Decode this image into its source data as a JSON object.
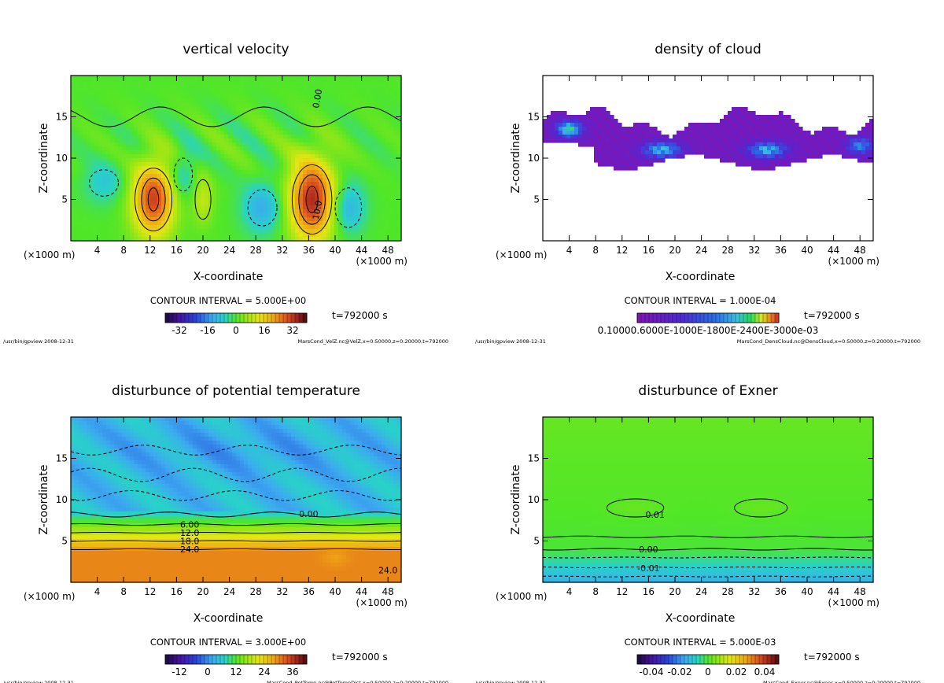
{
  "chart_data": [
    {
      "type": "heatmap",
      "id": "w",
      "title": "vertical velocity",
      "xlabel": "X-coordinate",
      "ylabel": "Z-coordinate",
      "x_unit_left": "(×1000 m)",
      "x_unit_right": "(×1000 m)",
      "xlim": [
        0,
        50
      ],
      "ylim": [
        0,
        20
      ],
      "xticks": [
        4,
        8,
        12,
        16,
        20,
        24,
        28,
        32,
        36,
        40,
        44,
        48
      ],
      "yticks": [
        5,
        10,
        15
      ],
      "contour_interval": "CONTOUR INTERVAL = 5.000E+00",
      "time_label": "t=792000 s",
      "colorbar_ticks": [
        "-32",
        "-16",
        "0",
        "16",
        "32"
      ],
      "colorbar_range": [
        -40,
        40
      ],
      "contour_labels": [
        "10.0",
        "0.00"
      ],
      "footer_left": "/usr/bin/gpview  2008-12-31",
      "footer_right": "MarsCond_VelZ.nc@VelZ,x=0:50000,z=0:20000,t=792000"
    },
    {
      "type": "heatmap",
      "id": "cloud",
      "title": "density of cloud",
      "xlabel": "X-coordinate",
      "ylabel": "Z-coordinate",
      "x_unit_left": "(×1000 m)",
      "x_unit_right": "(×1000 m)",
      "xlim": [
        0,
        50
      ],
      "ylim": [
        0,
        20
      ],
      "xticks": [
        4,
        8,
        12,
        16,
        20,
        24,
        28,
        32,
        36,
        40,
        44,
        48
      ],
      "yticks": [
        5,
        10,
        15
      ],
      "contour_interval": "CONTOUR INTERVAL = 1.000E-04",
      "time_label": "t=792000 s",
      "colorbar_tick_text": "0.10000.6000E-1000E-1800E-2400E-3000e-03",
      "colorbar_range": [
        0,
        0.0012
      ],
      "footer_left": "/usr/bin/gpview  2008-12-31",
      "footer_right": "MarsCond_DensCloud.nc@DensCloud,x=0:50000,z=0:20000,t=792000"
    },
    {
      "type": "heatmap",
      "id": "theta",
      "title": "disturbunce of potential temperature",
      "xlabel": "X-coordinate",
      "ylabel": "Z-coordinate",
      "x_unit_left": "(×1000 m)",
      "x_unit_right": "(×1000 m)",
      "xlim": [
        0,
        50
      ],
      "ylim": [
        0,
        20
      ],
      "xticks": [
        4,
        8,
        12,
        16,
        20,
        24,
        28,
        32,
        36,
        40,
        44,
        48
      ],
      "yticks": [
        5,
        10,
        15
      ],
      "contour_interval": "CONTOUR INTERVAL = 3.000E+00",
      "time_label": "t=792000 s",
      "colorbar_ticks": [
        "-12",
        "0",
        "12",
        "24",
        "36"
      ],
      "colorbar_range": [
        -18,
        42
      ],
      "contour_labels": [
        "0.00",
        "6.00",
        "12.0",
        "18.0",
        "24.0",
        "24.0"
      ],
      "footer_left": "/usr/bin/gpview  2008-12-31",
      "footer_right": "MarsCond_PotTemp.nc@PotTempDist,x=0:50000,z=0:20000,t=792000"
    },
    {
      "type": "heatmap",
      "id": "exner",
      "title": "disturbunce of Exner",
      "xlabel": "X-coordinate",
      "ylabel": "Z-coordinate",
      "x_unit_left": "(×1000 m)",
      "x_unit_right": "(×1000 m)",
      "xlim": [
        0,
        50
      ],
      "ylim": [
        0,
        20
      ],
      "xticks": [
        4,
        8,
        12,
        16,
        20,
        24,
        28,
        32,
        36,
        40,
        44,
        48
      ],
      "yticks": [
        5,
        10,
        15
      ],
      "contour_interval": "CONTOUR INTERVAL = 5.000E-03",
      "time_label": "t=792000 s",
      "colorbar_ticks": [
        "-0.04",
        "-0.02",
        "0",
        "0.02",
        "0.04"
      ],
      "colorbar_range": [
        -0.05,
        0.05
      ],
      "contour_labels": [
        "0.01",
        "0.00",
        "-0.01"
      ],
      "footer_left": "/usr/bin/gpview  2008-12-31",
      "footer_right": "MarsCond_Exner.nc@Exner,x=0:50000,z=0:20000,t=792000"
    }
  ]
}
